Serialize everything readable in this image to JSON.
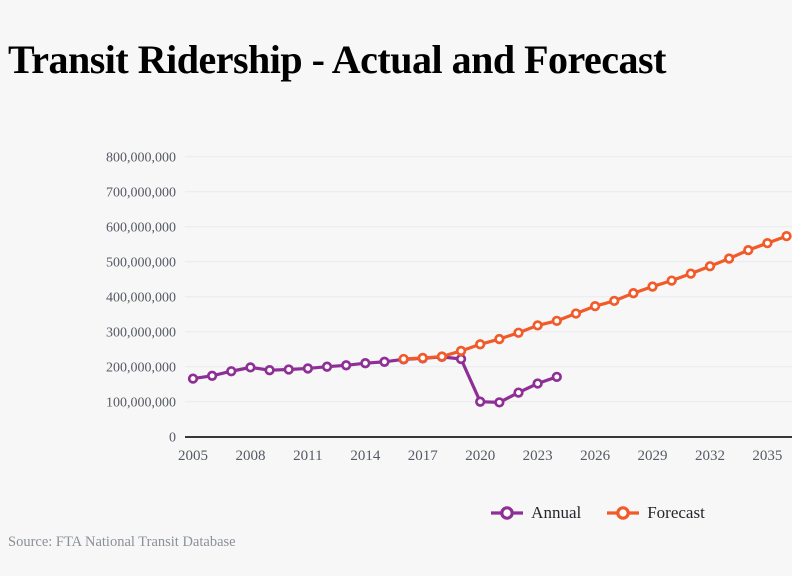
{
  "page": {
    "title": "Transit Ridership - Actual and Forecast",
    "source": "Source: FTA National Transit Database",
    "background": "#f7f7f8"
  },
  "chart_data": {
    "type": "line",
    "title": "Transit Ridership - Actual and Forecast",
    "grid": true,
    "legend_position": "bottom",
    "x_axis": {
      "min": 2005,
      "max": 2036,
      "tick_years": [
        2005,
        2008,
        2011,
        2014,
        2017,
        2020,
        2023,
        2026,
        2029,
        2032,
        2035
      ]
    },
    "y_axis": {
      "min": 0,
      "max": 800000000,
      "tick_interval": 100000000,
      "tick_labels": [
        "0",
        "100,000,000",
        "200,000,000",
        "300,000,000",
        "400,000,000",
        "500,000,000",
        "600,000,000",
        "700,000,000",
        "800,000,000"
      ]
    },
    "series": [
      {
        "name": "Annual",
        "color": "#8e2f96",
        "x": [
          2005,
          2006,
          2007,
          2008,
          2009,
          2010,
          2011,
          2012,
          2013,
          2014,
          2015,
          2016,
          2017,
          2018,
          2019,
          2020,
          2021,
          2022,
          2023,
          2024
        ],
        "values": [
          166000000,
          174000000,
          187000000,
          198000000,
          190000000,
          192000000,
          195000000,
          200000000,
          204000000,
          210000000,
          214000000,
          221000000,
          224000000,
          228000000,
          222000000,
          100000000,
          98000000,
          126000000,
          152000000,
          171000000
        ]
      },
      {
        "name": "Forecast",
        "color": "#f15a29",
        "x": [
          2016,
          2017,
          2018,
          2019,
          2020,
          2021,
          2022,
          2023,
          2024,
          2025,
          2026,
          2027,
          2028,
          2029,
          2030,
          2031,
          2032,
          2033,
          2034,
          2035,
          2036
        ],
        "values": [
          222000000,
          225000000,
          229000000,
          245000000,
          264000000,
          279000000,
          297000000,
          318000000,
          331000000,
          352000000,
          373000000,
          388000000,
          410000000,
          429000000,
          446000000,
          466000000,
          487000000,
          509000000,
          533000000,
          553000000,
          573000000
        ]
      }
    ],
    "colors": {
      "grid_line": "#e7eaee",
      "axis_line": "#36383c",
      "tick_label": "#565a63"
    }
  }
}
